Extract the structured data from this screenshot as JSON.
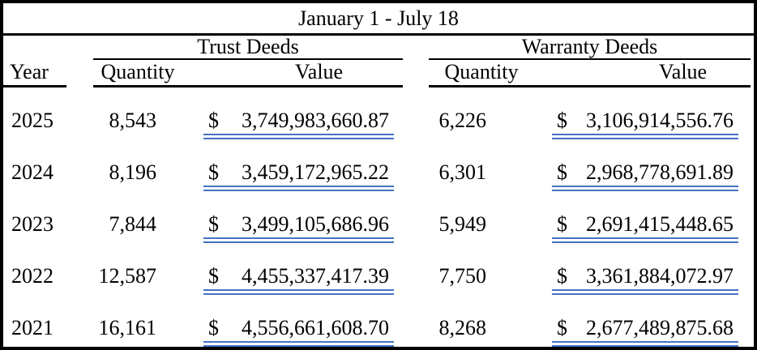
{
  "title": "January 1 - July 18",
  "labels": {
    "year": "Year",
    "quantity": "Quantity",
    "value": "Value",
    "currency": "$"
  },
  "groups": {
    "trust": "Trust Deeds",
    "warranty": "Warranty Deeds"
  },
  "rows": [
    {
      "year": "2025",
      "trust_qty": "8,543",
      "trust_val": "3,749,983,660.87",
      "warranty_qty": "6,226",
      "warranty_val": "3,106,914,556.76"
    },
    {
      "year": "2024",
      "trust_qty": "8,196",
      "trust_val": "3,459,172,965.22",
      "warranty_qty": "6,301",
      "warranty_val": "2,968,778,691.89"
    },
    {
      "year": "2023",
      "trust_qty": "7,844",
      "trust_val": "3,499,105,686.96",
      "warranty_qty": "5,949",
      "warranty_val": "2,691,415,448.65"
    },
    {
      "year": "2022",
      "trust_qty": "12,587",
      "trust_val": "4,455,337,417.39",
      "warranty_qty": "7,750",
      "warranty_val": "3,361,884,072.97"
    },
    {
      "year": "2021",
      "trust_qty": "16,161",
      "trust_val": "4,556,661,608.70",
      "warranty_qty": "8,268",
      "warranty_val": "2,677,489,875.68"
    }
  ],
  "colors": {
    "value_underline": "#4472C4",
    "border": "#000000",
    "background": "#FFFFFF",
    "text": "#000000"
  },
  "chart_data": {
    "type": "table",
    "title": "January 1 - July 18",
    "categories": [
      "2025",
      "2024",
      "2023",
      "2022",
      "2021"
    ],
    "series": [
      {
        "name": "Trust Deeds Quantity",
        "values": [
          8543,
          8196,
          7844,
          12587,
          16161
        ]
      },
      {
        "name": "Trust Deeds Value",
        "values": [
          3749983660.87,
          3459172965.22,
          3499105686.96,
          4455337417.39,
          4556661608.7
        ]
      },
      {
        "name": "Warranty Deeds Quantity",
        "values": [
          6226,
          6301,
          5949,
          7750,
          8268
        ]
      },
      {
        "name": "Warranty Deeds Value",
        "values": [
          3106914556.76,
          2968778691.89,
          2691415448.65,
          3361884072.97,
          2677489875.68
        ]
      }
    ]
  }
}
